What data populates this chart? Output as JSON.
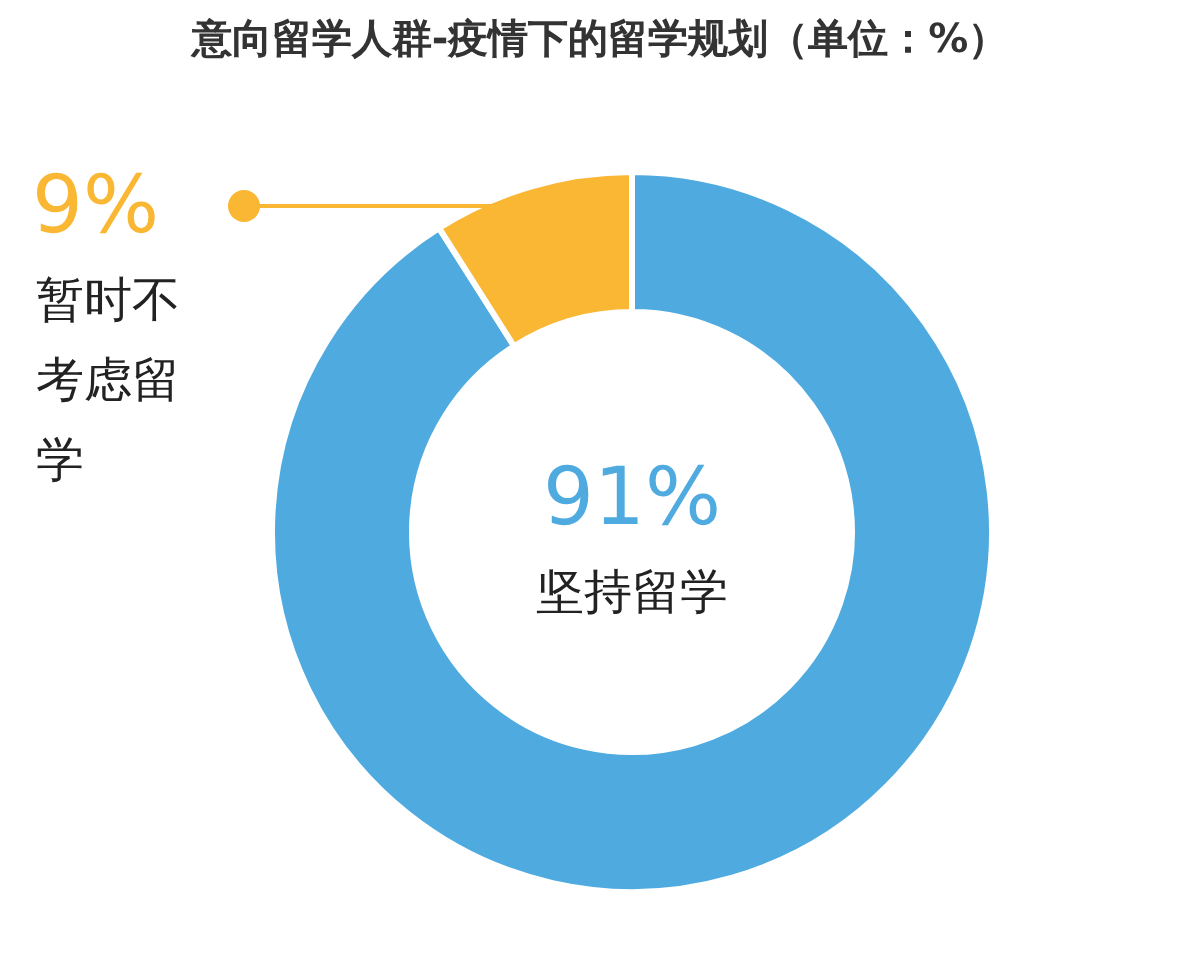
{
  "chart_data": {
    "type": "donut",
    "title": "意向留学人群-疫情下的留学规划（单位：%）",
    "categories": [
      "坚持留学",
      "暂时不考虑留学"
    ],
    "values": [
      91,
      9
    ],
    "colors": [
      "#4fabdf",
      "#f9b733"
    ],
    "value_labels": [
      "91%",
      "9%"
    ]
  }
}
